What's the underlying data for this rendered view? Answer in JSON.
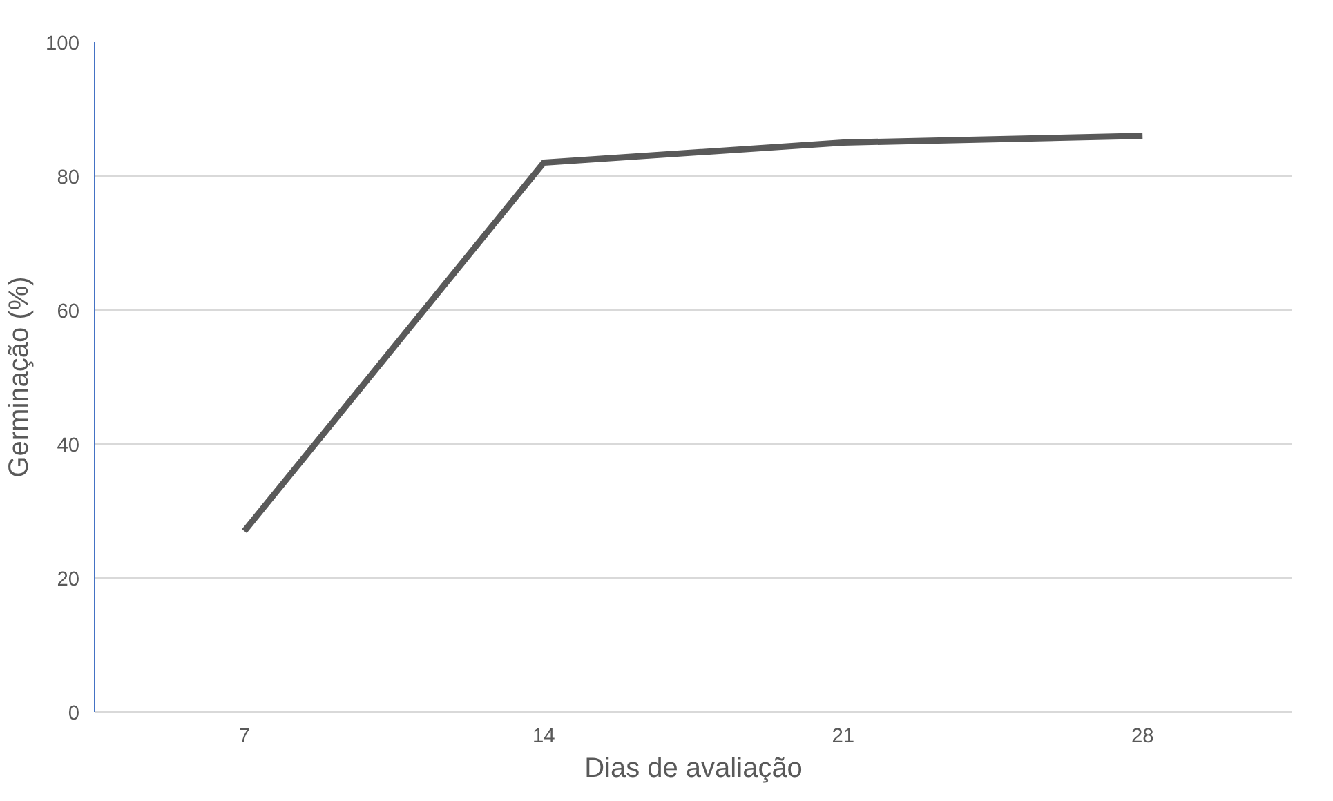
{
  "chart_data": {
    "type": "line",
    "xlabel": "Dias de avaliação",
    "ylabel": "Germinação (%)",
    "categories": [
      "7",
      "14",
      "21",
      "28"
    ],
    "series": [
      {
        "color": "#595959",
        "values": [
          27,
          82,
          85,
          86
        ]
      }
    ],
    "ylim": [
      0,
      100
    ],
    "yticks": [
      0,
      20,
      40,
      60,
      80,
      100
    ],
    "grid": "y",
    "marker": "none",
    "line_style": "solid"
  }
}
